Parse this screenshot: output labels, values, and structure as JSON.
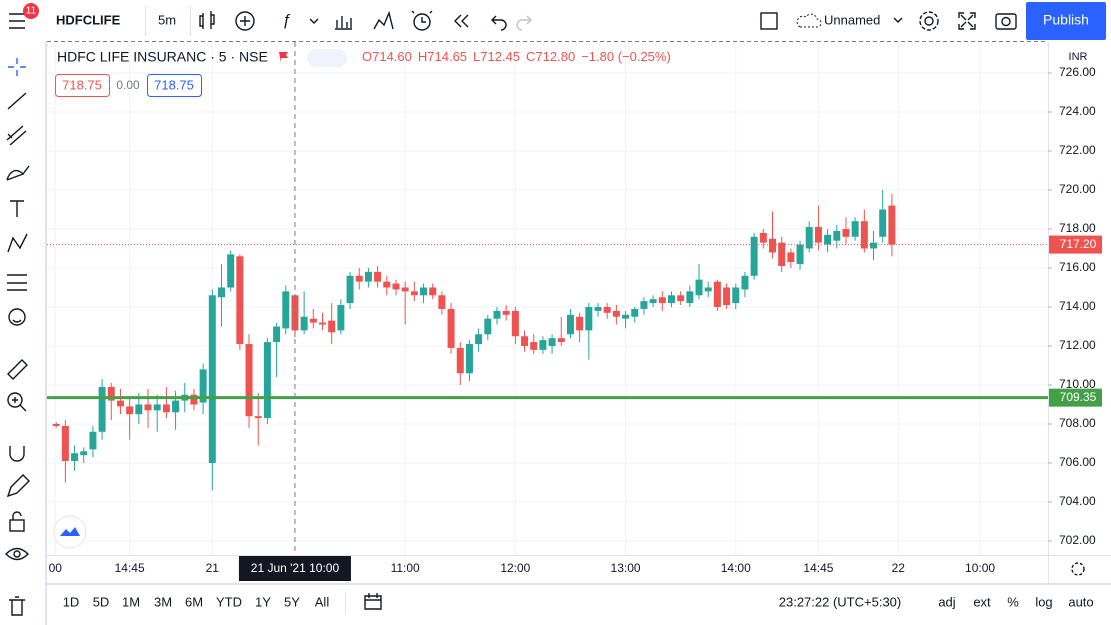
{
  "toolbar": {
    "badge": "11",
    "symbol": "HDFCLIFE",
    "interval": "5m",
    "layout_name": "Unnamed",
    "publish": "Publish"
  },
  "legend": {
    "symbol": "HDFC LIFE INSURANC · 5 · NSE",
    "ohlc": [
      "O714.60",
      "H714.65",
      "L712.45",
      "C712.80",
      "−1.80 (−0.25%)"
    ],
    "bid": "718.75",
    "spread": "0.00",
    "ask": "718.75"
  },
  "chart_data": {
    "type": "candlestick",
    "currency": "INR",
    "up_color": "#26a69a",
    "down_color": "#ef5350",
    "grid": true,
    "open": [
      708.0,
      707.9,
      706.1,
      706.4,
      706.7,
      707.6,
      709.9,
      709.2,
      708.9,
      708.5,
      709.0,
      708.7,
      709.0,
      708.6,
      709.2,
      709.5,
      709.1,
      706.0,
      714.5,
      715.0,
      716.6,
      712.1,
      708.4,
      708.3,
      712.2,
      712.9,
      714.6,
      712.8,
      713.4,
      713.2,
      713.3,
      712.8,
      714.2,
      715.6,
      715.3,
      715.8,
      715.3,
      715.2,
      715.0,
      714.8,
      714.6,
      715.0,
      714.6,
      713.9,
      711.9,
      710.6,
      712.1,
      712.6,
      713.4,
      713.8,
      713.8,
      712.5,
      712.2,
      711.8,
      712.0,
      712.4,
      712.6,
      713.5,
      712.8,
      713.8,
      714.0,
      713.8,
      713.4,
      713.5,
      713.9,
      714.2,
      714.5,
      714.2,
      714.6,
      714.2,
      714.6,
      714.8,
      715.3,
      715.0,
      714.2,
      714.9,
      715.6,
      717.8,
      717.5,
      717.3,
      716.8,
      716.2,
      717.0,
      718.1,
      717.2,
      717.4,
      718.0,
      717.6,
      718.4,
      717.0,
      717.6,
      719.2
    ],
    "high": [
      708.1,
      708.2,
      706.9,
      706.8,
      707.9,
      710.3,
      710.1,
      709.8,
      709.4,
      709.6,
      709.8,
      709.5,
      709.9,
      709.7,
      710.1,
      709.8,
      711.1,
      714.9,
      716.2,
      716.9,
      716.7,
      712.6,
      709.6,
      712.4,
      713.2,
      715.1,
      714.65,
      714.8,
      713.9,
      713.7,
      714.2,
      714.4,
      715.8,
      716.0,
      716.0,
      716.1,
      715.6,
      715.4,
      715.3,
      715.3,
      715.2,
      715.2,
      714.8,
      714.2,
      712.2,
      712.3,
      712.9,
      713.6,
      714.0,
      714.1,
      714.0,
      712.8,
      712.6,
      712.5,
      712.6,
      713.5,
      713.9,
      713.7,
      714.2,
      714.2,
      714.2,
      714.1,
      713.8,
      714.0,
      714.5,
      714.6,
      714.8,
      714.8,
      714.8,
      715.1,
      716.2,
      715.3,
      715.4,
      715.2,
      715.2,
      715.8,
      717.8,
      718.0,
      718.9,
      717.6,
      717.0,
      717.4,
      718.4,
      719.2,
      718.0,
      718.2,
      718.6,
      718.6,
      719.0,
      717.9,
      720.0,
      719.8
    ],
    "low": [
      707.8,
      705.0,
      705.6,
      706.0,
      706.3,
      707.2,
      708.2,
      708.5,
      707.2,
      708.0,
      707.8,
      707.6,
      708.3,
      707.7,
      708.6,
      708.7,
      708.5,
      704.6,
      713.0,
      714.8,
      711.8,
      707.8,
      706.9,
      708.0,
      710.4,
      712.6,
      712.45,
      712.6,
      712.9,
      712.8,
      712.1,
      712.6,
      713.9,
      714.9,
      715.0,
      715.0,
      714.6,
      714.6,
      713.1,
      714.3,
      714.2,
      714.4,
      713.6,
      711.6,
      710.0,
      710.2,
      711.7,
      712.3,
      713.1,
      713.3,
      712.1,
      711.7,
      711.6,
      711.6,
      711.6,
      712.0,
      712.4,
      712.2,
      711.3,
      713.5,
      713.4,
      713.1,
      712.9,
      713.2,
      713.6,
      714.0,
      713.8,
      714.0,
      714.1,
      714.0,
      714.4,
      714.5,
      713.8,
      713.9,
      713.9,
      714.5,
      715.4,
      717.0,
      716.5,
      715.8,
      716.0,
      715.9,
      716.8,
      716.9,
      716.8,
      717.0,
      717.2,
      717.4,
      716.8,
      716.4,
      717.3,
      716.6
    ],
    "close": [
      707.9,
      706.1,
      706.5,
      706.6,
      707.6,
      709.9,
      709.2,
      708.9,
      708.5,
      709.0,
      708.7,
      709.0,
      708.6,
      709.2,
      709.5,
      709.0,
      710.8,
      714.6,
      715.0,
      716.7,
      712.1,
      708.4,
      708.3,
      712.2,
      713.0,
      714.8,
      712.8,
      713.5,
      713.2,
      713.1,
      712.7,
      714.1,
      715.6,
      715.3,
      715.8,
      715.3,
      715.0,
      714.9,
      714.8,
      714.6,
      715.0,
      714.6,
      713.9,
      711.9,
      710.6,
      712.1,
      712.6,
      713.4,
      713.8,
      713.6,
      712.5,
      712.0,
      711.8,
      712.3,
      712.4,
      712.2,
      713.6,
      712.8,
      714.0,
      714.0,
      713.7,
      713.5,
      713.6,
      713.9,
      714.3,
      714.4,
      714.2,
      714.6,
      714.3,
      714.8,
      715.4,
      715.0,
      714.0,
      714.1,
      715.0,
      715.6,
      717.6,
      717.3,
      716.8,
      716.1,
      716.3,
      717.2,
      718.1,
      717.3,
      717.7,
      717.9,
      717.6,
      718.4,
      717.0,
      717.3,
      719.0,
      717.2
    ],
    "xlim": [
      -1,
      108
    ],
    "xticks": [
      {
        "value": -0.1,
        "label": "00"
      },
      {
        "value": 8,
        "label": "14:45"
      },
      {
        "value": 17,
        "label": "21"
      },
      {
        "value": 38,
        "label": "11:00"
      },
      {
        "value": 50,
        "label": "12:00"
      },
      {
        "value": 62,
        "label": "13:00"
      },
      {
        "value": 74,
        "label": "14:00"
      },
      {
        "value": 83,
        "label": "14:45"
      },
      {
        "value": 91.7,
        "label": "22"
      },
      {
        "value": 100.6,
        "label": "10:00"
      }
    ],
    "ylim": [
      701.28,
      727.59
    ],
    "yticks": [
      {
        "value": 702,
        "label": "702.00"
      },
      {
        "value": 704,
        "label": "704.00"
      },
      {
        "value": 706,
        "label": "706.00"
      },
      {
        "value": 708,
        "label": "708.00"
      },
      {
        "value": 710,
        "label": "710.00"
      },
      {
        "value": 712,
        "label": "712.00"
      },
      {
        "value": 714,
        "label": "714.00"
      },
      {
        "value": 716,
        "label": "716.00"
      },
      {
        "value": 718,
        "label": "718.00"
      },
      {
        "value": 720,
        "label": "720.00"
      },
      {
        "value": 722,
        "label": "722.00"
      },
      {
        "value": 724,
        "label": "724.00"
      },
      {
        "value": 726,
        "label": "726.00"
      }
    ],
    "hline": {
      "value": 709.35,
      "color": "#43a047"
    },
    "last_price": {
      "value": 717.2,
      "label": "717.20"
    },
    "crosshair": {
      "value": 26,
      "label": "21 Jun '21   10:00"
    }
  },
  "bottom_bar": {
    "ranges": [
      "1D",
      "5D",
      "1M",
      "3M",
      "6M",
      "YTD",
      "1Y",
      "5Y",
      "All"
    ],
    "clock": "23:27:22 (UTC+5:30)",
    "options": [
      "adj",
      "ext",
      "%",
      "log",
      "auto"
    ]
  }
}
